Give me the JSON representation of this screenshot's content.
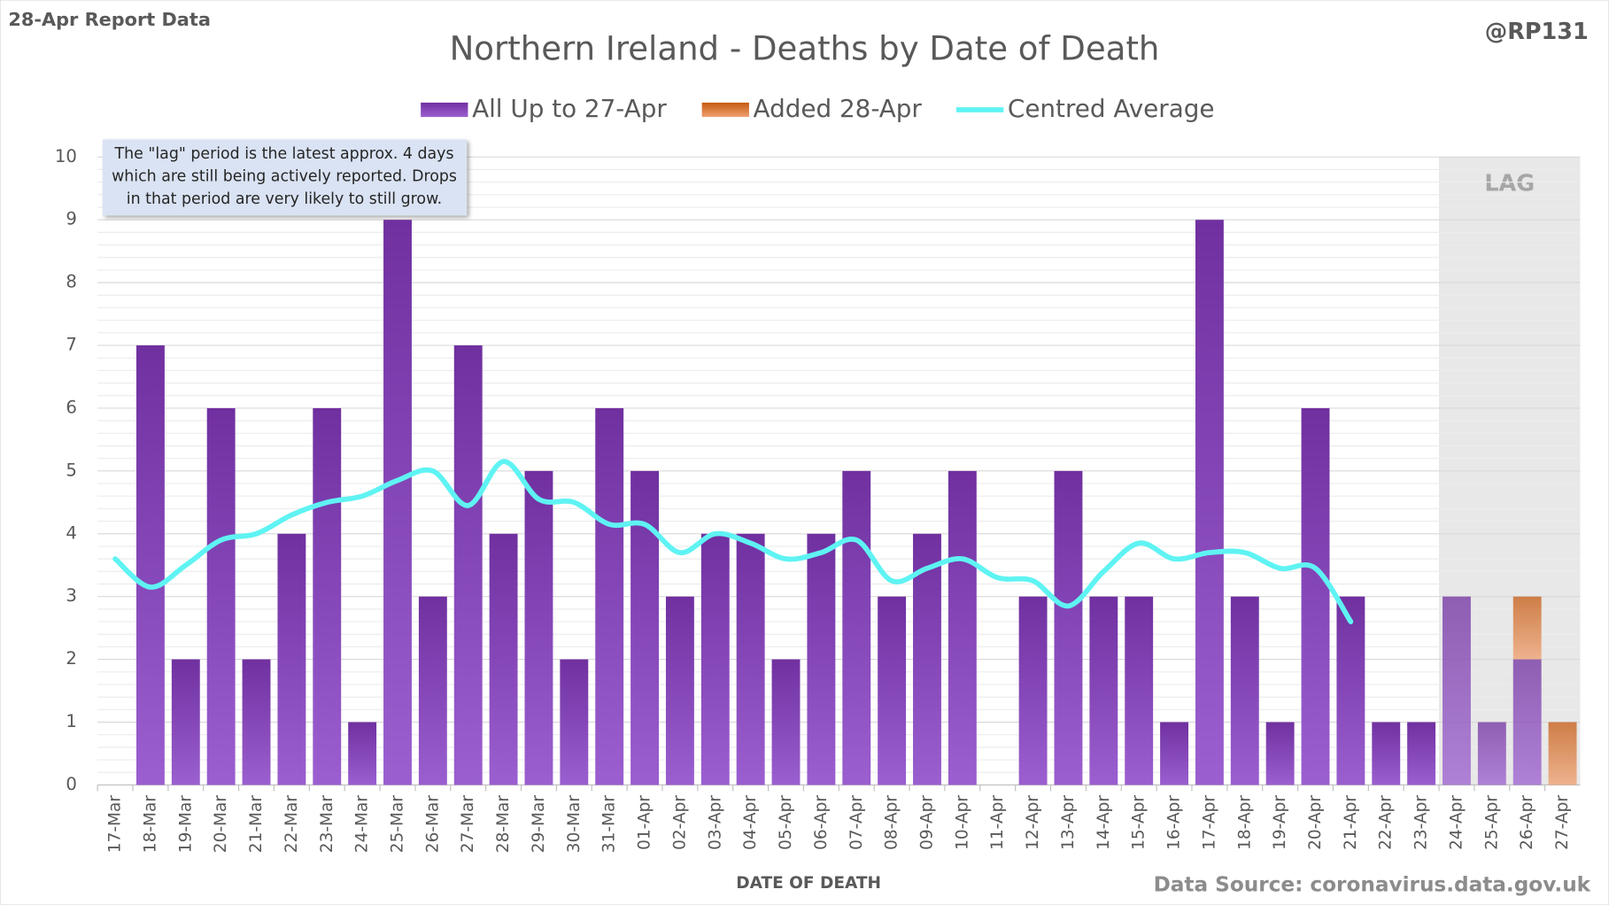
{
  "chart_data": {
    "type": "bar",
    "stacked": true,
    "corner_note": "28-Apr Report Data",
    "handle": "@RP131",
    "title": "Northern Ireland - Deaths by Date of Death",
    "annotation": [
      "The \"lag\" period is the latest approx. 4 days",
      "which are still being actively reported.  Drops",
      "in that period are very likely to still grow."
    ],
    "lag_label": "LAG",
    "x_label": "DATE OF DEATH",
    "source": "Data Source: coronavirus.data.gov.uk",
    "categories": [
      "17-Mar",
      "18-Mar",
      "19-Mar",
      "20-Mar",
      "21-Mar",
      "22-Mar",
      "23-Mar",
      "24-Mar",
      "25-Mar",
      "26-Mar",
      "27-Mar",
      "28-Mar",
      "29-Mar",
      "30-Mar",
      "31-Mar",
      "01-Apr",
      "02-Apr",
      "03-Apr",
      "04-Apr",
      "05-Apr",
      "06-Apr",
      "07-Apr",
      "08-Apr",
      "09-Apr",
      "10-Apr",
      "11-Apr",
      "12-Apr",
      "13-Apr",
      "14-Apr",
      "15-Apr",
      "16-Apr",
      "17-Apr",
      "18-Apr",
      "19-Apr",
      "20-Apr",
      "21-Apr",
      "22-Apr",
      "23-Apr",
      "24-Apr",
      "25-Apr",
      "26-Apr",
      "27-Apr"
    ],
    "series": [
      {
        "name": "All Up to 27-Apr",
        "color": "#7030a0",
        "values": [
          0,
          7,
          2,
          6,
          2,
          4,
          6,
          1,
          9,
          3,
          7,
          4,
          5,
          2,
          6,
          5,
          3,
          4,
          4,
          2,
          4,
          5,
          3,
          4,
          5,
          0,
          3,
          5,
          3,
          3,
          1,
          9,
          3,
          1,
          6,
          3,
          1,
          1,
          3,
          1,
          2,
          0
        ]
      },
      {
        "name": "Added 28-Apr",
        "color": "#c55a11",
        "values": [
          0,
          0,
          0,
          0,
          0,
          0,
          0,
          0,
          0,
          0,
          0,
          0,
          0,
          0,
          0,
          0,
          0,
          0,
          0,
          0,
          0,
          0,
          0,
          0,
          0,
          0,
          0,
          0,
          0,
          0,
          0,
          0,
          0,
          0,
          0,
          0,
          0,
          0,
          0,
          0,
          1,
          1
        ]
      },
      {
        "name": "Centred Average",
        "type": "line",
        "color": "#5ff3f3",
        "values": [
          3.6,
          3.15,
          3.5,
          3.9,
          4.0,
          4.3,
          4.5,
          4.6,
          4.85,
          5.0,
          4.45,
          5.15,
          4.55,
          4.5,
          4.15,
          4.15,
          3.7,
          4.0,
          3.85,
          3.6,
          3.7,
          3.9,
          3.25,
          3.45,
          3.6,
          3.3,
          3.25,
          2.85,
          3.4,
          3.85,
          3.6,
          3.7,
          3.7,
          3.45,
          3.45,
          2.6,
          null,
          null,
          null,
          null,
          null,
          null
        ]
      }
    ],
    "ylim": [
      0,
      10
    ],
    "yticks": [
      0,
      1,
      2,
      3,
      4,
      5,
      6,
      7,
      8,
      9,
      10
    ],
    "grid": true
  }
}
